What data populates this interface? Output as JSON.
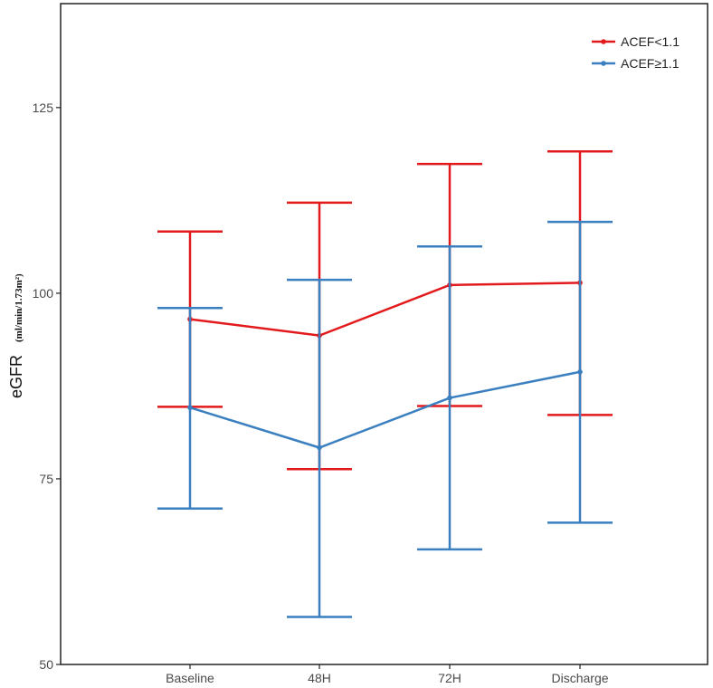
{
  "chart_data": {
    "type": "line",
    "title": "",
    "xlabel": "",
    "ylabel": "eGFR",
    "ylabel_units": "(ml/min/1.73m²)",
    "categories": [
      "Baseline",
      "48H",
      "72H",
      "Discharge"
    ],
    "ylim": [
      50,
      139
    ],
    "yticks": [
      50,
      75,
      100,
      125
    ],
    "grid": false,
    "legend_position": "top-right",
    "series": [
      {
        "name": "ACEF<1.1",
        "color": "#e31a1c",
        "values": [
          96.5,
          94.3,
          101.1,
          101.4
        ],
        "err_low": [
          84.7,
          76.3,
          84.8,
          83.6
        ],
        "err_high": [
          108.3,
          112.2,
          117.4,
          119.1
        ]
      },
      {
        "name": "ACEF≥1.1",
        "color": "#3a7fbf",
        "values": [
          84.6,
          79.2,
          85.9,
          89.4
        ],
        "err_low": [
          71.0,
          56.4,
          65.5,
          69.1
        ],
        "err_high": [
          98.0,
          101.8,
          106.3,
          109.6
        ]
      }
    ]
  }
}
